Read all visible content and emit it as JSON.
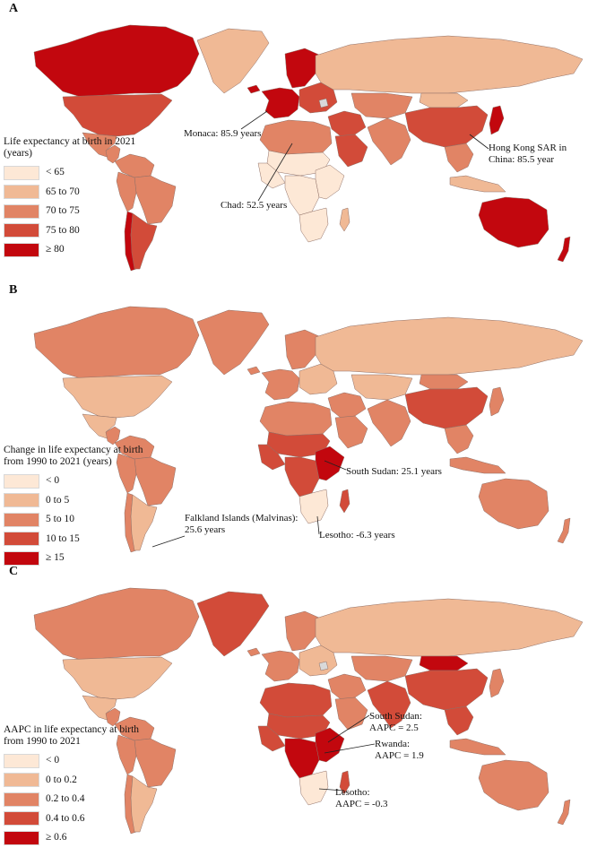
{
  "colors": {
    "c0": "#fde8d6",
    "c1": "#f0b995",
    "c2": "#e18465",
    "c3": "#d24b39",
    "c4": "#c2070e",
    "nodata": "#d9d9d9"
  },
  "panels": [
    {
      "letter": "A",
      "legend_title": "Life expectancy at birth in 2021 (years)",
      "legend": [
        "< 65",
        "65 to 70",
        "70 to 75",
        "75 to 80",
        "≥ 80"
      ],
      "callouts": [
        {
          "text": "Monaca: 85.9 years"
        },
        {
          "text": "Hong Kong SAR in\nChina: 85.5 year"
        },
        {
          "text": "Chad: 52.5 years"
        }
      ]
    },
    {
      "letter": "B",
      "legend_title": "Change in life expectancy at birth from 1990 to 2021 (years)",
      "legend": [
        "< 0",
        "0 to 5",
        "5 to 10",
        "10 to 15",
        "≥ 15"
      ],
      "callouts": [
        {
          "text": "South Sudan: 25.1 years"
        },
        {
          "text": "Falkland Islands (Malvinas):\n25.6 years"
        },
        {
          "text": "Lesotho: -6.3 years"
        }
      ]
    },
    {
      "letter": "C",
      "legend_title": "AAPC in life expectancy at birth from 1990 to 2021",
      "legend": [
        "< 0",
        "0 to 0.2",
        "0.2 to 0.4",
        "0.4 to 0.6",
        "≥ 0.6"
      ],
      "callouts": [
        {
          "text": "South Sudan:\nAAPC = 2.5"
        },
        {
          "text": "Rwanda:\nAAPC = 1.9"
        },
        {
          "text": "Lesotho:\nAAPC = -0.3"
        }
      ]
    }
  ],
  "regions": {
    "A": {
      "canada": 4,
      "greenland": 1,
      "usa": 3,
      "mexico": 2,
      "centralAm": 2,
      "southAmN": 2,
      "brazil": 2,
      "andes": 2,
      "argentina": 3,
      "chile": 4,
      "europeW": 4,
      "europeE": 3,
      "scandinavia": 4,
      "russia": 1,
      "northAfrica": 2,
      "sahel": 0,
      "westAfrica": 0,
      "centralAfrica": 0,
      "eastAfrica": 0,
      "southAfrica": 0,
      "madagascar": 1,
      "middleEast": 3,
      "arabia": 3,
      "centralAsia": 2,
      "southAsia": 2,
      "china": 3,
      "mongolia": 1,
      "seAsia": 2,
      "indonesia": 1,
      "japan": 4,
      "australia": 4,
      "newZealand": 4,
      "iceland": 4
    },
    "B": {
      "canada": 2,
      "greenland": 2,
      "usa": 1,
      "mexico": 1,
      "centralAm": 2,
      "southAmN": 2,
      "brazil": 2,
      "andes": 2,
      "argentina": 1,
      "chile": 2,
      "europeW": 2,
      "europeE": 1,
      "scandinavia": 2,
      "russia": 1,
      "northAfrica": 2,
      "sahel": 3,
      "westAfrica": 3,
      "centralAfrica": 3,
      "eastAfrica": 4,
      "southAfrica": 0,
      "madagascar": 3,
      "middleEast": 2,
      "arabia": 2,
      "centralAsia": 1,
      "southAsia": 2,
      "china": 3,
      "mongolia": 2,
      "seAsia": 2,
      "indonesia": 2,
      "japan": 2,
      "australia": 2,
      "newZealand": 2,
      "iceland": 2
    },
    "C": {
      "canada": 2,
      "greenland": 3,
      "usa": 1,
      "mexico": 1,
      "centralAm": 2,
      "southAmN": 2,
      "brazil": 2,
      "andes": 2,
      "argentina": 1,
      "chile": 2,
      "europeW": 2,
      "europeE": 1,
      "scandinavia": 2,
      "russia": 1,
      "northAfrica": 3,
      "sahel": 3,
      "westAfrica": 3,
      "centralAfrica": 4,
      "eastAfrica": 4,
      "southAfrica": 0,
      "madagascar": 3,
      "middleEast": 2,
      "arabia": 2,
      "centralAsia": 2,
      "southAsia": 3,
      "china": 3,
      "mongolia": 4,
      "seAsia": 3,
      "indonesia": 2,
      "japan": 2,
      "australia": 2,
      "newZealand": 2,
      "iceland": 2
    }
  }
}
